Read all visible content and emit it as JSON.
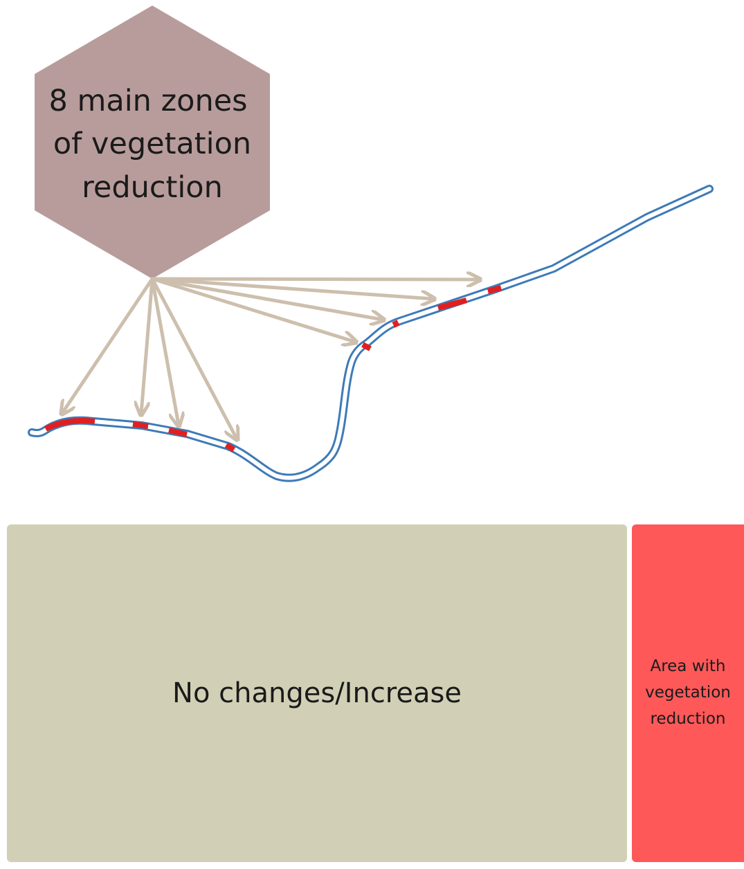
{
  "callout": {
    "lines": [
      "8 main zones",
      "of vegetation",
      "reduction"
    ],
    "fill": "#b89c9c"
  },
  "river": {
    "outline_color": "#3d7ab8",
    "reduction_color": "#e02020"
  },
  "arrows": {
    "color": "#cdbfad",
    "count": 8
  },
  "legend": {
    "no_change_label": "No changes/Increase",
    "no_change_color": "#d1d0b6",
    "reduction_lines": [
      "Area with",
      "vegetation",
      "reduction"
    ],
    "reduction_color": "#fe5859"
  }
}
